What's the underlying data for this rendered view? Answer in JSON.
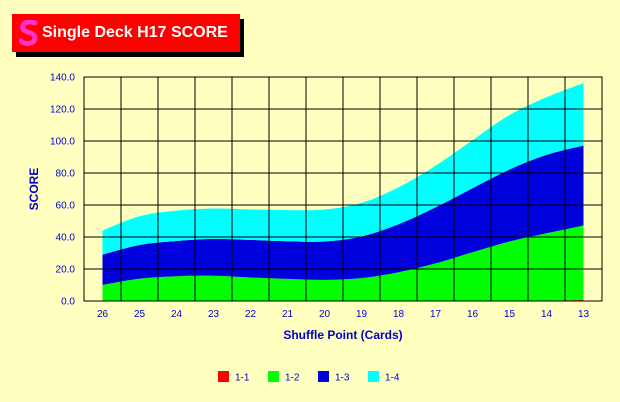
{
  "title": "Single Deck H17 SCORE",
  "chart_data": {
    "type": "area",
    "stacked": true,
    "title": "Single Deck H17 SCORE",
    "xlabel": "Shuffle Point (Cards)",
    "ylabel": "SCORE",
    "ylim": [
      0,
      140
    ],
    "yticks": [
      "0.0",
      "20.0",
      "40.0",
      "60.0",
      "80.0",
      "100.0",
      "120.0",
      "140.0"
    ],
    "categories": [
      "26",
      "25",
      "24",
      "23",
      "22",
      "21",
      "20",
      "19",
      "18",
      "17",
      "16",
      "15",
      "14",
      "13"
    ],
    "series": [
      {
        "name": "1-1",
        "color": "#ff0000",
        "values": [
          0,
          0,
          0,
          0,
          0,
          0,
          0,
          0,
          0,
          0,
          0,
          0,
          0.3,
          0.6
        ]
      },
      {
        "name": "1-2",
        "color": "#00ff00",
        "values": [
          10,
          14,
          15.5,
          15.8,
          14.7,
          13.8,
          13.2,
          14.3,
          18,
          23.5,
          30.5,
          37.2,
          42,
          46.6
        ]
      },
      {
        "name": "1-3",
        "color": "#0000dd",
        "values": [
          19,
          21,
          22,
          23,
          23.5,
          23.5,
          24,
          26,
          30,
          35,
          40,
          45,
          49,
          50
        ]
      },
      {
        "name": "1-4",
        "color": "#00ffff",
        "values": [
          15,
          18,
          19,
          19,
          19,
          19.5,
          20,
          21,
          23,
          26,
          30,
          34,
          36,
          39
        ]
      }
    ],
    "legend_position": "bottom",
    "grid": true
  }
}
